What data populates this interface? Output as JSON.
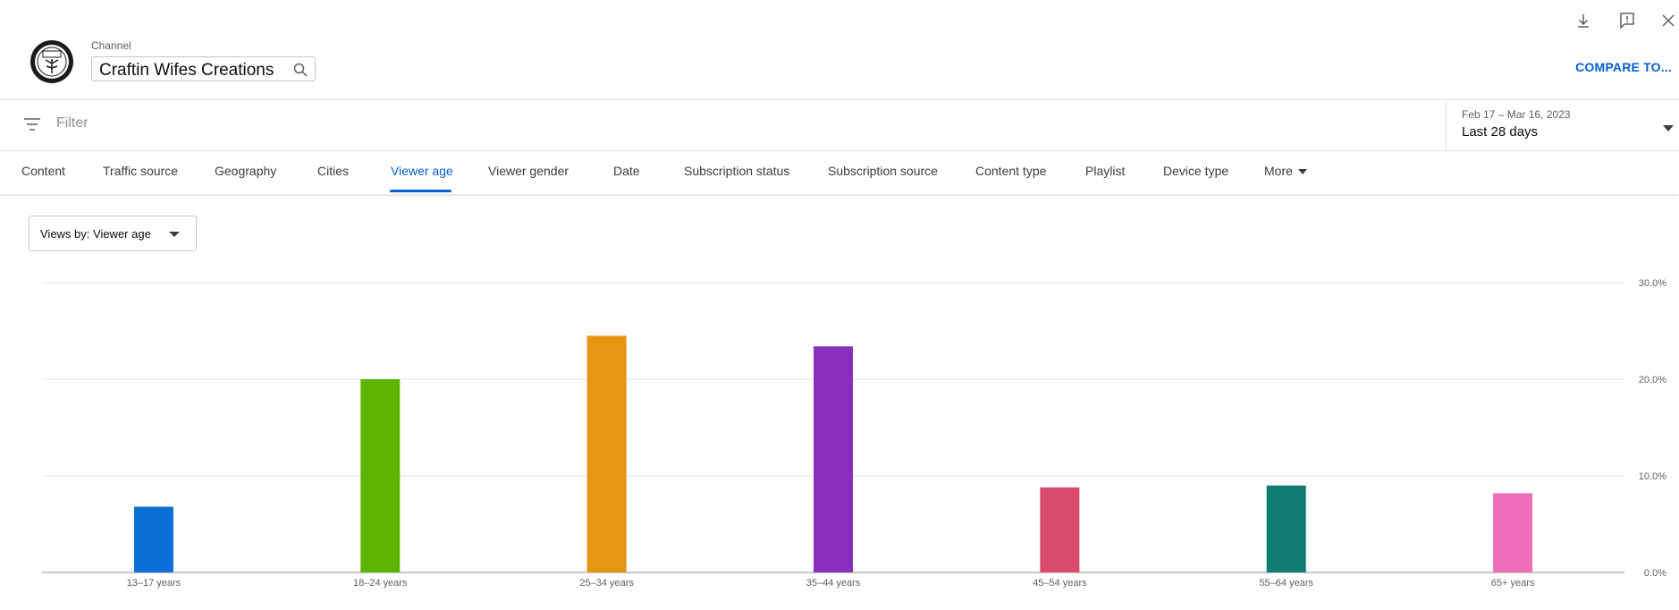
{
  "header": {
    "channel_label": "Channel",
    "channel_name": "Craftin Wifes Creations",
    "compare_label": "COMPARE TO..."
  },
  "filter": {
    "placeholder": "Filter"
  },
  "date": {
    "range": "Feb 17 – Mar 16, 2023",
    "period": "Last 28 days"
  },
  "tabs": [
    {
      "label": "Content"
    },
    {
      "label": "Traffic source"
    },
    {
      "label": "Geography"
    },
    {
      "label": "Cities"
    },
    {
      "label": "Viewer age",
      "active": true
    },
    {
      "label": "Viewer gender"
    },
    {
      "label": "Date"
    },
    {
      "label": "Subscription status"
    },
    {
      "label": "Subscription source"
    },
    {
      "label": "Content type"
    },
    {
      "label": "Playlist"
    },
    {
      "label": "Device type"
    },
    {
      "label": "More"
    }
  ],
  "views_select": {
    "label": "Views by: Viewer age"
  },
  "icons": {
    "download": "download-icon",
    "feedback": "feedback-icon",
    "close": "close-icon",
    "search": "search-icon",
    "filter": "filter-icon",
    "dropdown": "chevron-down-icon"
  },
  "chart_data": {
    "type": "bar",
    "categories": [
      "13–17 years",
      "18–24 years",
      "25–34 years",
      "35–44 years",
      "45–54 years",
      "55–64 years",
      "65+ years"
    ],
    "values": [
      6.8,
      20.0,
      24.5,
      23.4,
      8.8,
      9.0,
      8.2
    ],
    "colors": [
      "#0a6fd6",
      "#5db400",
      "#e5950f",
      "#8a2fbd",
      "#d94b6b",
      "#107d70",
      "#f06eb9"
    ],
    "yticks": [
      "0.0%",
      "10.0%",
      "20.0%",
      "30.0%"
    ],
    "ylim": [
      0,
      30
    ],
    "grid": true
  }
}
